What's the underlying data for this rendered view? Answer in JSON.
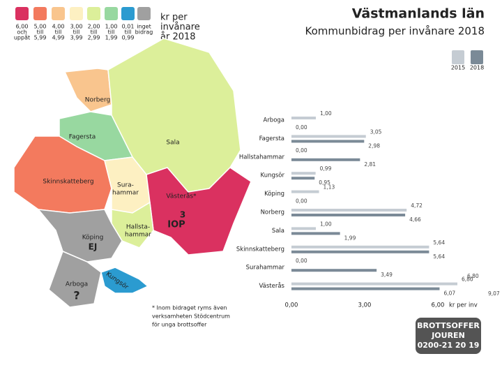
{
  "header": {
    "title": "Västmanlands län",
    "subtitle": "Kommunbidrag per invånare 2018"
  },
  "legend": {
    "title": [
      "kr per",
      "invånare",
      "år 2018"
    ],
    "classes": [
      {
        "label": [
          "6,00",
          "och",
          "uppåt"
        ],
        "color": "#da3160"
      },
      {
        "label": [
          "5,00",
          "till",
          "5,99"
        ],
        "color": "#f37a5e"
      },
      {
        "label": [
          "4,00",
          "till",
          "4,99"
        ],
        "color": "#f9c58e"
      },
      {
        "label": [
          "3,00",
          "till",
          "3,99"
        ],
        "color": "#fdf0c2"
      },
      {
        "label": [
          "2,00",
          "till",
          "2,99"
        ],
        "color": "#dcef9a"
      },
      {
        "label": [
          "1,00",
          "till",
          "1,99"
        ],
        "color": "#98d8a0"
      },
      {
        "label": [
          "0,01",
          "till",
          "0,99"
        ],
        "color": "#2b9bd0"
      },
      {
        "label": [
          "inget",
          "bidrag"
        ],
        "color": "#a0a0a0"
      }
    ]
  },
  "map": {
    "regions": [
      {
        "label": [
          "Norberg"
        ],
        "color": "#f9c58e"
      },
      {
        "label": [
          "Fagersta"
        ],
        "color": "#dcef9a"
      },
      {
        "label": [
          "Sala"
        ],
        "color": "#98d8a0"
      },
      {
        "label": [
          "Skinnskatteberg"
        ],
        "color": "#f37a5e"
      },
      {
        "label": [
          "Sura-",
          "hammar"
        ],
        "color": "#fdf0c2"
      },
      {
        "label": [
          "Västerås*"
        ],
        "color": "#da3160"
      },
      {
        "label": [
          "Hallsta-",
          "hammar"
        ],
        "color": "#dcef9a"
      },
      {
        "label": [
          "Köping"
        ],
        "color": "#a0a0a0"
      },
      {
        "label": [
          "Arboga"
        ],
        "color": "#a0a0a0"
      },
      {
        "label": [
          "Kungsör"
        ],
        "color": "#2b9bd0"
      }
    ],
    "notes": [
      "EJ",
      "3",
      "IOP",
      "?"
    ]
  },
  "chart_data": {
    "type": "bar",
    "orientation": "horizontal",
    "categories": [
      "Arboga",
      "Fagersta",
      "Hallstahammar",
      "Kungsör",
      "Köping",
      "Norberg",
      "Sala",
      "Skinnskatteberg",
      "Surahammar",
      "Västerås"
    ],
    "series": [
      {
        "name": "2015",
        "color": "#c5ccd3",
        "values": [
          1.0,
          3.05,
          0.0,
          0.99,
          1.13,
          4.72,
          1.0,
          5.64,
          0.0,
          6.8
        ],
        "value_labels": [
          "1,00",
          "3,05",
          "0,00",
          "0,99",
          "1,13",
          "4,72",
          "1,00",
          "5,64",
          "0,00",
          "6,80"
        ]
      },
      {
        "name": "2018",
        "color": "#7b8a97",
        "values": [
          0.0,
          2.98,
          2.81,
          0.95,
          0.0,
          4.66,
          1.99,
          5.64,
          3.49,
          6.07
        ],
        "value_labels": [
          "0,00",
          "2,98",
          "2,81",
          "0,95",
          "0,00",
          "4,66",
          "1,99",
          "5,64",
          "3,49",
          "6,07"
        ]
      }
    ],
    "annotations": [
      "6,80",
      "9,07"
    ],
    "xlabel": "kr per inv",
    "xlim": [
      0,
      7
    ],
    "xticks": [
      {
        "value": 0,
        "label": "0,00"
      },
      {
        "value": 3,
        "label": "3,00"
      },
      {
        "value": 6,
        "label": "6,00"
      }
    ],
    "grid": false
  },
  "footnote": [
    "* Inom bidraget ryms även",
    "verksamheten Stödcentrum",
    "för unga brottsoffer"
  ],
  "logo": [
    "BROTTSOFFER",
    "JOUREN",
    "0200-21 20 19"
  ]
}
